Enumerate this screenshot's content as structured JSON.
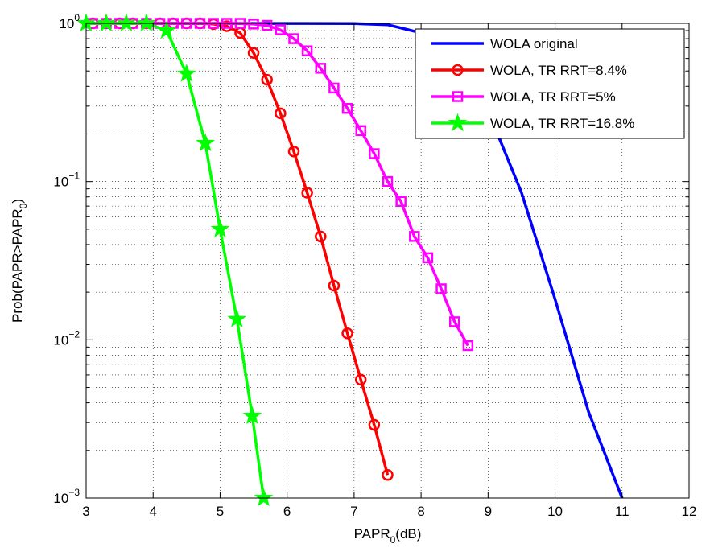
{
  "chart_data": {
    "type": "line",
    "xlabel": {
      "base": "PAPR",
      "sub": "0",
      "rest": "(dB)"
    },
    "ylabel": {
      "base": "Prob(PAPR>PAPR",
      "sub": "0",
      "rest": ")"
    },
    "xlim": [
      3,
      12
    ],
    "ylim": [
      0.001,
      1
    ],
    "yscale": "log",
    "x_ticks": [
      3,
      4,
      5,
      6,
      7,
      8,
      9,
      10,
      11,
      12
    ],
    "x_tick_labels": [
      "3",
      "4",
      "5",
      "6",
      "7",
      "8",
      "9",
      "10",
      "11",
      "12"
    ],
    "y_ticks": [
      {
        "value": 1,
        "base": "10",
        "exp": "0"
      },
      {
        "value": 0.1,
        "base": "10",
        "exp": "−1"
      },
      {
        "value": 0.01,
        "base": "10",
        "exp": "−2"
      },
      {
        "value": 0.001,
        "base": "10",
        "exp": "−3"
      }
    ],
    "grid": true,
    "legend_position": "top-right",
    "series": [
      {
        "name": "WOLA original",
        "color": "#0000ff",
        "marker": "none",
        "x": [
          3.0,
          7.0,
          7.5,
          8.0,
          8.5,
          9.0,
          9.5,
          10.0,
          10.5,
          11.0
        ],
        "y": [
          1.0,
          0.998,
          0.98,
          0.87,
          0.6,
          0.28,
          0.085,
          0.018,
          0.0035,
          0.001
        ]
      },
      {
        "name": "WOLA, TR RRT=8.4%",
        "color": "#ff0000",
        "marker": "circle",
        "x": [
          3.1,
          3.3,
          3.5,
          3.7,
          3.9,
          4.1,
          4.3,
          4.5,
          4.7,
          4.9,
          5.1,
          5.3,
          5.5,
          5.7,
          5.9,
          6.1,
          6.3,
          6.5,
          6.7,
          6.9,
          7.1,
          7.3,
          7.5
        ],
        "y": [
          1.0,
          1.0,
          1.0,
          1.0,
          1.0,
          1.0,
          1.0,
          1.0,
          1.0,
          0.99,
          0.96,
          0.87,
          0.65,
          0.44,
          0.27,
          0.155,
          0.085,
          0.045,
          0.022,
          0.011,
          0.0056,
          0.0029,
          0.0014
        ]
      },
      {
        "name": "WOLA, TR RRT=5%",
        "color": "#ff00ff",
        "marker": "square",
        "x": [
          3.1,
          3.3,
          3.5,
          3.7,
          3.9,
          4.1,
          4.3,
          4.5,
          4.7,
          4.9,
          5.1,
          5.3,
          5.5,
          5.7,
          5.9,
          6.1,
          6.3,
          6.5,
          6.7,
          6.9,
          7.1,
          7.3,
          7.5,
          7.7,
          7.9,
          8.1,
          8.3,
          8.5,
          8.7
        ],
        "y": [
          1.0,
          1.0,
          1.0,
          1.0,
          1.0,
          1.0,
          1.0,
          1.0,
          1.0,
          1.0,
          1.0,
          1.0,
          0.99,
          0.97,
          0.91,
          0.8,
          0.67,
          0.52,
          0.39,
          0.29,
          0.21,
          0.15,
          0.1,
          0.075,
          0.045,
          0.033,
          0.021,
          0.013,
          0.0092
        ]
      },
      {
        "name": "WOLA, TR RRT=16.8%",
        "color": "#00ff00",
        "marker": "star",
        "x": [
          3.0,
          3.3,
          3.6,
          3.9,
          4.2,
          4.5,
          4.78,
          5.0,
          5.25,
          5.48,
          5.65
        ],
        "y": [
          1.0,
          1.0,
          1.0,
          1.0,
          0.9,
          0.48,
          0.175,
          0.05,
          0.0135,
          0.0033,
          0.001
        ]
      }
    ]
  }
}
